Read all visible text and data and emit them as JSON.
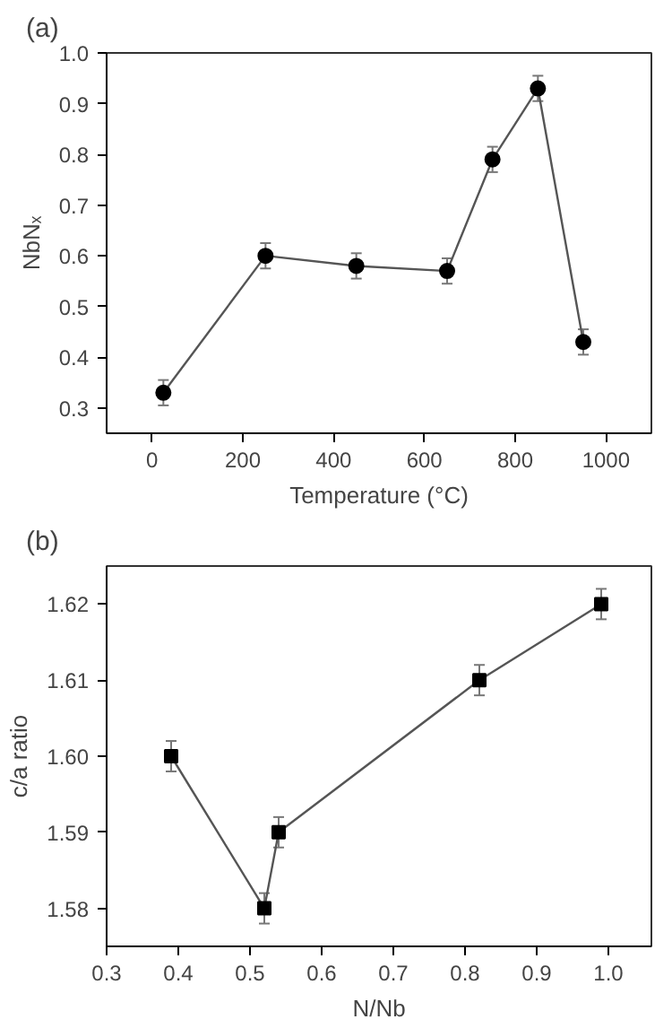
{
  "chart_data": [
    {
      "type": "line",
      "title": "(a)",
      "xlabel": "Temperature (°C)",
      "ylabel": "NbNₓ",
      "marker": "circle",
      "line_style": "solid",
      "grid": false,
      "x": [
        25,
        250,
        450,
        650,
        750,
        850,
        950
      ],
      "series": [
        {
          "color": "#000000",
          "values": [
            0.33,
            0.6,
            0.58,
            0.57,
            0.79,
            0.93,
            0.43
          ],
          "errors": [
            0.025,
            0.025,
            0.025,
            0.025,
            0.025,
            0.025,
            0.025
          ]
        }
      ],
      "xlim": [
        -100,
        1100
      ],
      "xticks": [
        0,
        200,
        400,
        600,
        800,
        1000
      ],
      "ylim": [
        0.25,
        1.0
      ],
      "yticks": [
        0.3,
        0.4,
        0.5,
        0.6,
        0.7,
        0.8,
        0.9,
        {
          "value": 1.0,
          "label": "1.0"
        }
      ]
    },
    {
      "type": "line",
      "title": "(b)",
      "xlabel": "N/Nb",
      "ylabel": "c/a ratio",
      "marker": "square",
      "line_style": "solid",
      "grid": false,
      "x": [
        0.39,
        0.52,
        0.54,
        0.82,
        0.99
      ],
      "series": [
        {
          "color": "#000000",
          "values": [
            1.6,
            1.58,
            1.59,
            1.61,
            1.62
          ],
          "errors": [
            0.002,
            0.002,
            0.002,
            0.002,
            0.002
          ]
        }
      ],
      "xlim": [
        0.3,
        1.06
      ],
      "xticks": [
        0.3,
        0.4,
        0.5,
        0.6,
        0.7,
        0.8,
        0.9,
        {
          "value": 1.0,
          "label": "1.0"
        }
      ],
      "ylim": [
        1.575,
        1.625
      ],
      "yticks": [
        {
          "value": 1.58,
          "label": "1.58"
        },
        {
          "value": 1.59,
          "label": "1.59"
        },
        {
          "value": 1.6,
          "label": "1.60"
        },
        {
          "value": 1.61,
          "label": "1.61"
        },
        {
          "value": 1.62,
          "label": "1.62"
        }
      ]
    }
  ]
}
